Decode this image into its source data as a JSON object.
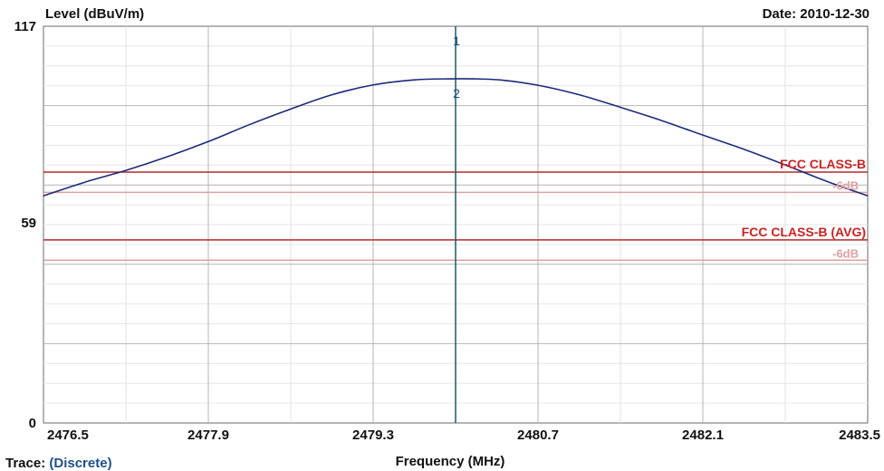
{
  "header": {
    "ylabel": "Level (dBuV/m)",
    "date": "Date: 2010-12-30"
  },
  "footer": {
    "trace_label": "Trace:",
    "trace_value": "(Discrete)"
  },
  "chart_data": {
    "type": "line",
    "title": "",
    "xlabel": "Frequency (MHz)",
    "ylabel": "Level (dBuV/m)",
    "xlim": [
      2476.5,
      2483.5
    ],
    "ylim": [
      0,
      117
    ],
    "x_ticks": [
      2476.5,
      2477.9,
      2479.3,
      2480.7,
      2482.1,
      2483.5
    ],
    "x_tick_labels": [
      "2476.5",
      "2477.9",
      "2479.3",
      "2480.7",
      "2482.1",
      "2483.5"
    ],
    "y_tick_labels": [
      {
        "value": 117,
        "label": "117"
      },
      {
        "value": 59,
        "label": "59"
      },
      {
        "value": 0,
        "label": "0"
      }
    ],
    "grid": true,
    "series": [
      {
        "color": "#1c2a7a",
        "x": [
          2476.5,
          2476.85,
          2477.2,
          2477.55,
          2477.9,
          2478.25,
          2478.6,
          2478.95,
          2479.3,
          2479.65,
          2479.95,
          2480.15,
          2480.4,
          2480.7,
          2481.05,
          2481.4,
          2481.75,
          2482.1,
          2482.45,
          2482.8,
          2483.15,
          2483.5
        ],
        "y": [
          67,
          71,
          74.5,
          78.5,
          83,
          88,
          92.6,
          96.8,
          99.7,
          101.2,
          101.5,
          101.5,
          101.1,
          99.6,
          96.8,
          93.1,
          89.2,
          84.9,
          80.7,
          76.1,
          71.3,
          67
        ]
      }
    ],
    "limit_lines": [
      {
        "name": "FCC CLASS-B",
        "value": 74,
        "color": "#b22a2a",
        "label_color": "#cc2222",
        "offset_label": "-6dB",
        "offset_value": 68,
        "offset_color": "#e0a0a0"
      },
      {
        "name": "FCC CLASS-B (AVG)",
        "value": 54,
        "color": "#b22a2a",
        "label_color": "#cc2222",
        "offset_label": "-6dB",
        "offset_value": 48,
        "offset_color": "#e0a0a0"
      }
    ],
    "markers": [
      {
        "label": "1",
        "x": 2480.0,
        "y": 112.5
      },
      {
        "label": "2",
        "x": 2480.0,
        "y": 97
      }
    ],
    "marker_line": {
      "x": 2480.0,
      "color": "#1a5a6a"
    }
  }
}
